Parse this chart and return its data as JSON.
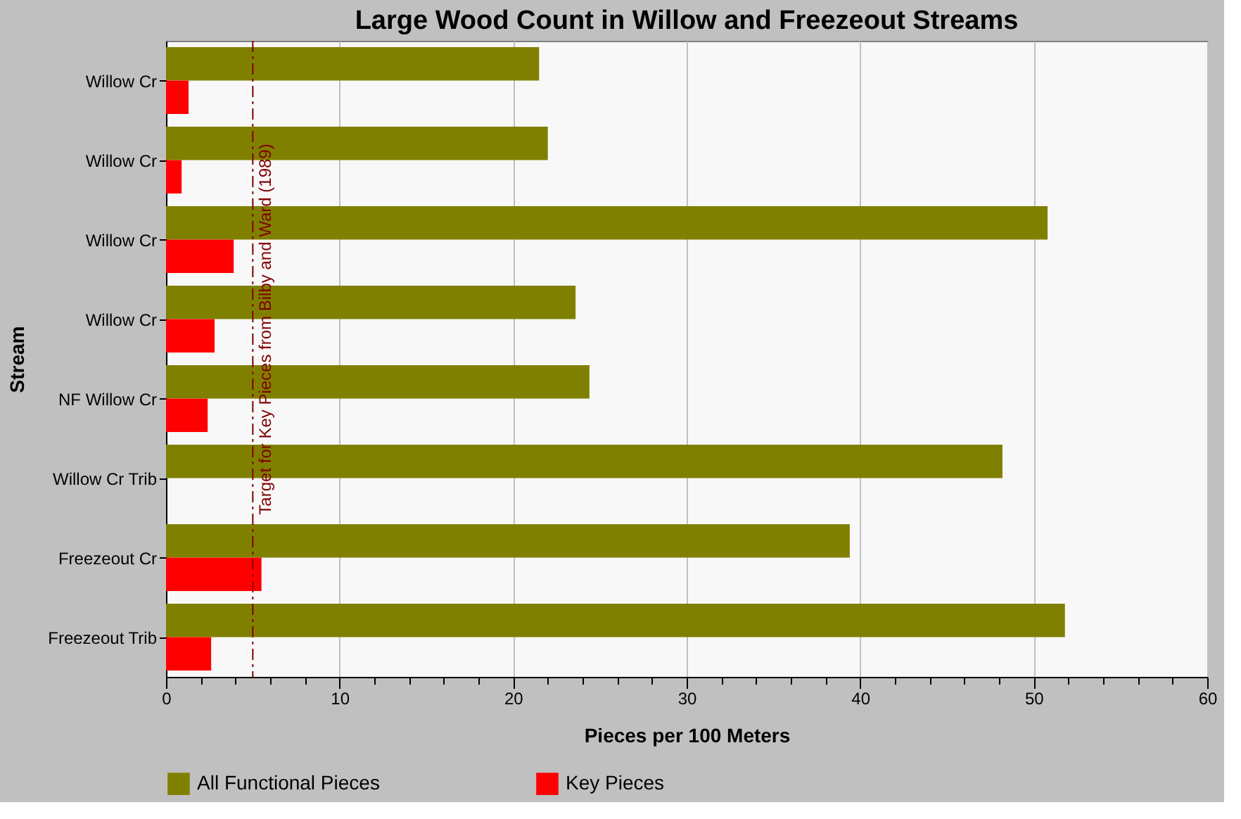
{
  "chart_data": {
    "type": "bar",
    "orientation": "horizontal",
    "title": "Large Wood Count in Willow and Freezeout Streams",
    "xlabel": "Pieces per 100 Meters",
    "ylabel": "Stream",
    "categories": [
      "Willow Cr",
      "Willow Cr",
      "Willow Cr",
      "Willow Cr",
      "NF Willow Cr",
      "Willow Cr Trib",
      "Freezeout Cr",
      "Freezeout Trib"
    ],
    "series": [
      {
        "name": "All Functional Pieces",
        "color": "#808000",
        "values": [
          21.5,
          22.0,
          50.8,
          23.6,
          24.4,
          48.2,
          39.4,
          51.8
        ]
      },
      {
        "name": "Key Pieces",
        "color": "#ff0000",
        "values": [
          1.3,
          0.9,
          3.9,
          2.8,
          2.4,
          0,
          5.5,
          2.6
        ]
      }
    ],
    "xlim": [
      0,
      60
    ],
    "xticks": [
      0,
      {
        "value": 2,
        "label": null
      },
      {
        "value": 4,
        "label": null
      },
      {
        "value": 6,
        "label": null
      },
      {
        "value": 8,
        "label": null
      },
      10,
      {
        "value": 12,
        "label": null
      },
      {
        "value": 14,
        "label": null
      },
      {
        "value": 16,
        "label": null
      },
      {
        "value": 18,
        "label": null
      },
      20,
      {
        "value": 22,
        "label": null
      },
      {
        "value": 24,
        "label": null
      },
      {
        "value": 26,
        "label": null
      },
      {
        "value": 28,
        "label": null
      },
      30,
      {
        "value": 32,
        "label": null
      },
      {
        "value": 34,
        "label": null
      },
      {
        "value": 36,
        "label": null
      },
      {
        "value": 38,
        "label": null
      },
      40,
      {
        "value": 42,
        "label": null
      },
      {
        "value": 44,
        "label": null
      },
      {
        "value": 46,
        "label": null
      },
      {
        "value": 48,
        "label": null
      },
      50,
      {
        "value": 52,
        "label": null
      },
      {
        "value": 54,
        "label": null
      },
      {
        "value": 56,
        "label": null
      },
      {
        "value": 58,
        "label": null
      },
      60
    ],
    "grid": "x",
    "legend": "bottom",
    "ref_lines": [
      {
        "axis": "x",
        "value": 5,
        "label": "Target for Key Pieces from Bilby and Ward (1989)",
        "color": "#800000",
        "line_style": "dashdot"
      }
    ]
  }
}
